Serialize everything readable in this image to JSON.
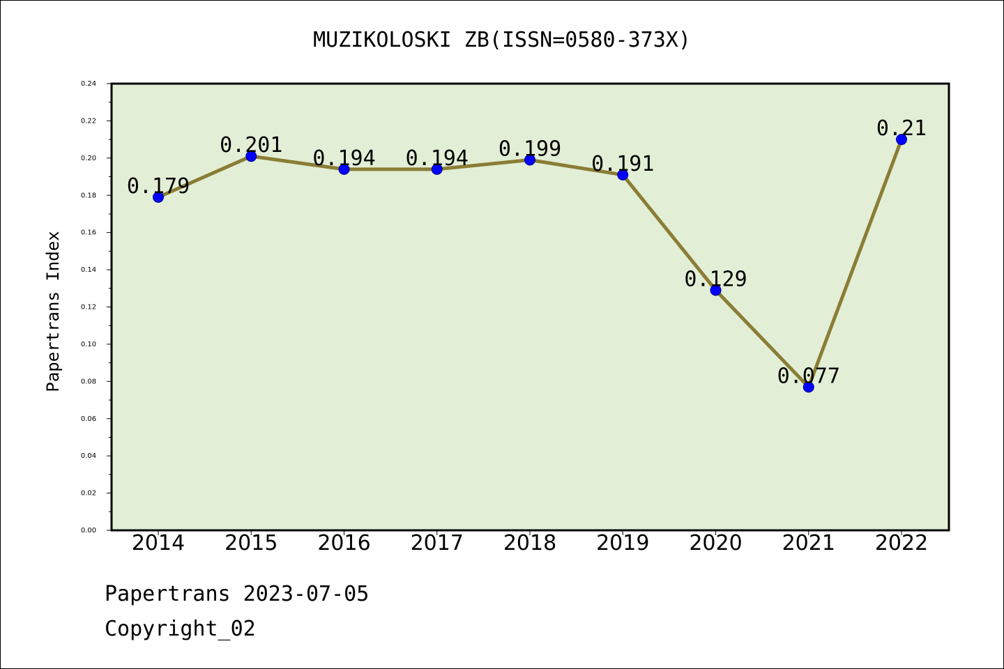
{
  "chart_data": {
    "type": "line",
    "title": "MUZIKOLOSKI ZB(ISSN=0580-373X)",
    "xlabel": "",
    "ylabel": "Papertrans Index",
    "categories": [
      "2014",
      "2015",
      "2016",
      "2017",
      "2018",
      "2019",
      "2020",
      "2021",
      "2022"
    ],
    "values": [
      0.179,
      0.201,
      0.194,
      0.194,
      0.199,
      0.191,
      0.129,
      0.077,
      0.21
    ],
    "data_labels": [
      "0.179",
      "0.201",
      "0.194",
      "0.194",
      "0.199",
      "0.191",
      "0.129",
      "0.077",
      "0.21"
    ],
    "ylim": [
      0,
      0.24
    ],
    "yticks": [
      "0.00",
      "0.02",
      "0.04",
      "0.06",
      "0.08",
      "0.10",
      "0.12",
      "0.14",
      "0.16",
      "0.18",
      "0.20",
      "0.22",
      "0.24"
    ],
    "grid": false,
    "colors": {
      "plot_background": "#e2efd6",
      "line": "#8b7d35",
      "marker": "#0000ff"
    }
  },
  "footer": {
    "line1": "Papertrans 2023-07-05",
    "line2": "Copyright_02"
  }
}
